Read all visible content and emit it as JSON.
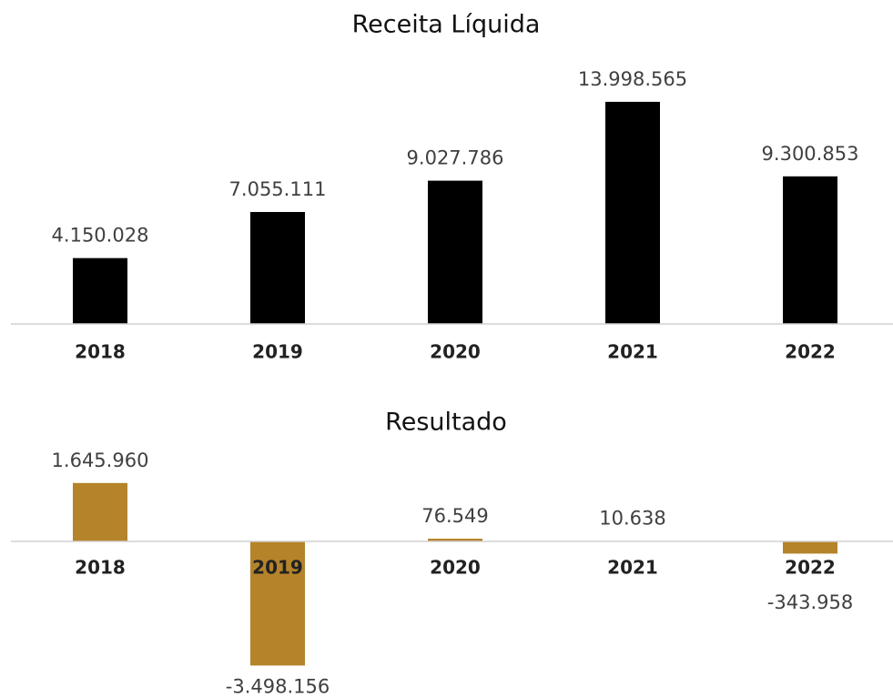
{
  "chart_data": [
    {
      "type": "bar",
      "title": "Receita Líquida",
      "categories": [
        "2018",
        "2019",
        "2020",
        "2021",
        "2022"
      ],
      "values": [
        4150028,
        7055111,
        9027786,
        13998565,
        9300853
      ],
      "value_labels": [
        "4.150.028",
        "7.055.111",
        "9.027.786",
        "13.998.565",
        "9.300.853"
      ],
      "color": "#000000",
      "ylim": [
        0,
        16000000
      ]
    },
    {
      "type": "bar",
      "title": "Resultado",
      "categories": [
        "2018",
        "2019",
        "2020",
        "2021",
        "2022"
      ],
      "values": [
        1645960,
        -3498156,
        76549,
        10638,
        -343958
      ],
      "value_labels": [
        "1.645.960",
        "-3.498.156",
        "76.549",
        "10.638",
        "-343.958"
      ],
      "color": "#b5832a",
      "ylim": [
        -4000000,
        2000000
      ]
    }
  ]
}
